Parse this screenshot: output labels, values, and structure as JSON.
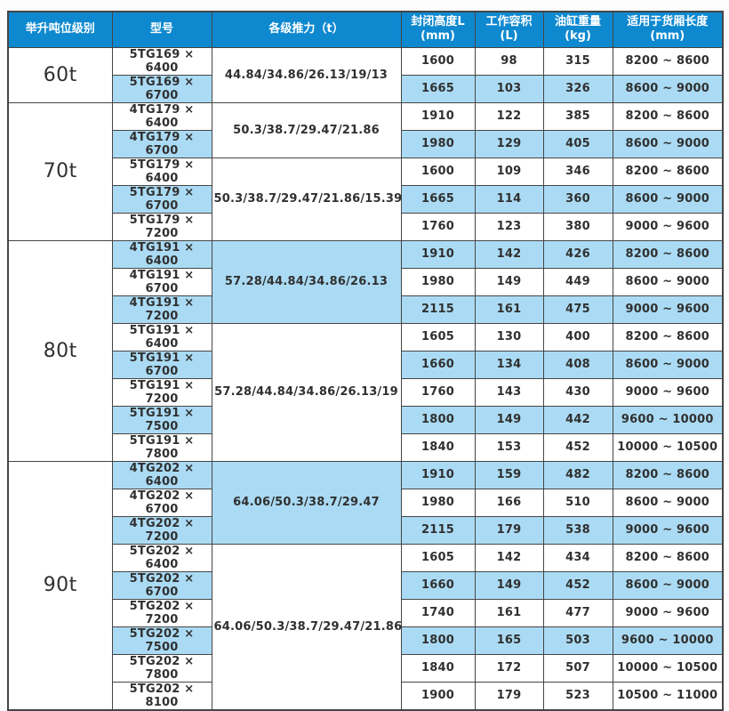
{
  "colors": {
    "page_bg": "#fcfcfc",
    "header_bg": "#0e89d0",
    "header_text": "#ffffff",
    "row_blue": "#abdbf4",
    "row_white": "#ffffff",
    "border": "#454545",
    "text": "#303030"
  },
  "table": {
    "columns": [
      {
        "id": "tonnage",
        "label": "举升吨位级别",
        "sub": ""
      },
      {
        "id": "model",
        "label": "型号",
        "sub": ""
      },
      {
        "id": "thrust",
        "label": "各级推力（t）",
        "sub": ""
      },
      {
        "id": "closed-height",
        "label": "封闭高度L",
        "sub": "(mm)"
      },
      {
        "id": "working-volume",
        "label": "工作容积(L)",
        "sub": ""
      },
      {
        "id": "cylinder-weight",
        "label": "油缸重量(kg)",
        "sub": ""
      },
      {
        "id": "cargo-length",
        "label": "适用于货厢长度",
        "sub": "(mm)"
      }
    ],
    "groups": [
      {
        "tonnage": "60t",
        "subgroups": [
          {
            "thrust": "44.84/34.86/26.13/19/13",
            "thrust_shade": "white",
            "rows": [
              {
                "model": "5TG169 × 6400",
                "closed_height": "1600",
                "working_volume": "98",
                "cylinder_weight": "315",
                "cargo_length": "8200 ~ 8600",
                "shade": "white"
              },
              {
                "model": "5TG169 × 6700",
                "closed_height": "1665",
                "working_volume": "103",
                "cylinder_weight": "326",
                "cargo_length": "8600 ~ 9000",
                "shade": "blue"
              }
            ]
          }
        ]
      },
      {
        "tonnage": "70t",
        "subgroups": [
          {
            "thrust": "50.3/38.7/29.47/21.86",
            "thrust_shade": "white",
            "rows": [
              {
                "model": "4TG179 × 6400",
                "closed_height": "1910",
                "working_volume": "122",
                "cylinder_weight": "385",
                "cargo_length": "8200 ~ 8600",
                "shade": "white"
              },
              {
                "model": "4TG179 × 6700",
                "closed_height": "1980",
                "working_volume": "129",
                "cylinder_weight": "405",
                "cargo_length": "8600 ~ 9000",
                "shade": "blue"
              }
            ]
          },
          {
            "thrust": "50.3/38.7/29.47/21.86/15.39",
            "thrust_shade": "white",
            "rows": [
              {
                "model": "5TG179 × 6400",
                "closed_height": "1600",
                "working_volume": "109",
                "cylinder_weight": "346",
                "cargo_length": "8200 ~ 8600",
                "shade": "white"
              },
              {
                "model": "5TG179 × 6700",
                "closed_height": "1665",
                "working_volume": "114",
                "cylinder_weight": "360",
                "cargo_length": "8600 ~ 9000",
                "shade": "blue"
              },
              {
                "model": "5TG179 × 7200",
                "closed_height": "1760",
                "working_volume": "123",
                "cylinder_weight": "380",
                "cargo_length": "9000 ~ 9600",
                "shade": "white"
              }
            ]
          }
        ]
      },
      {
        "tonnage": "80t",
        "subgroups": [
          {
            "thrust": "57.28/44.84/34.86/26.13",
            "thrust_shade": "blue",
            "rows": [
              {
                "model": "4TG191 × 6400",
                "closed_height": "1910",
                "working_volume": "142",
                "cylinder_weight": "426",
                "cargo_length": "8200 ~ 8600",
                "shade": "blue"
              },
              {
                "model": "4TG191 × 6700",
                "closed_height": "1980",
                "working_volume": "149",
                "cylinder_weight": "449",
                "cargo_length": "8600 ~ 9000",
                "shade": "white"
              },
              {
                "model": "4TG191 × 7200",
                "closed_height": "2115",
                "working_volume": "161",
                "cylinder_weight": "475",
                "cargo_length": "9000 ~ 9600",
                "shade": "blue"
              }
            ]
          },
          {
            "thrust": "57.28/44.84/34.86/26.13/19",
            "thrust_shade": "white",
            "rows": [
              {
                "model": "5TG191 × 6400",
                "closed_height": "1605",
                "working_volume": "130",
                "cylinder_weight": "400",
                "cargo_length": "8200 ~ 8600",
                "shade": "white"
              },
              {
                "model": "5TG191 × 6700",
                "closed_height": "1660",
                "working_volume": "134",
                "cylinder_weight": "408",
                "cargo_length": "8600 ~ 9000",
                "shade": "blue"
              },
              {
                "model": "5TG191 × 7200",
                "closed_height": "1760",
                "working_volume": "143",
                "cylinder_weight": "430",
                "cargo_length": "9000 ~ 9600",
                "shade": "white"
              },
              {
                "model": "5TG191 × 7500",
                "closed_height": "1800",
                "working_volume": "149",
                "cylinder_weight": "442",
                "cargo_length": "9600 ~ 10000",
                "shade": "blue"
              },
              {
                "model": "5TG191 × 7800",
                "closed_height": "1840",
                "working_volume": "153",
                "cylinder_weight": "452",
                "cargo_length": "10000 ~ 10500",
                "shade": "white"
              }
            ]
          }
        ]
      },
      {
        "tonnage": "90t",
        "subgroups": [
          {
            "thrust": "64.06/50.3/38.7/29.47",
            "thrust_shade": "blue",
            "rows": [
              {
                "model": "4TG202 × 6400",
                "closed_height": "1910",
                "working_volume": "159",
                "cylinder_weight": "482",
                "cargo_length": "8200 ~ 8600",
                "shade": "blue"
              },
              {
                "model": "4TG202 × 6700",
                "closed_height": "1980",
                "working_volume": "166",
                "cylinder_weight": "510",
                "cargo_length": "8600 ~ 9000",
                "shade": "white"
              },
              {
                "model": "4TG202 × 7200",
                "closed_height": "2115",
                "working_volume": "179",
                "cylinder_weight": "538",
                "cargo_length": "9000 ~ 9600",
                "shade": "blue"
              }
            ]
          },
          {
            "thrust": "64.06/50.3/38.7/29.47/21.86",
            "thrust_shade": "white",
            "rows": [
              {
                "model": "5TG202 × 6400",
                "closed_height": "1605",
                "working_volume": "142",
                "cylinder_weight": "434",
                "cargo_length": "8200 ~ 8600",
                "shade": "white"
              },
              {
                "model": "5TG202 × 6700",
                "closed_height": "1660",
                "working_volume": "149",
                "cylinder_weight": "452",
                "cargo_length": "8600 ~ 9000",
                "shade": "blue"
              },
              {
                "model": "5TG202 × 7200",
                "closed_height": "1740",
                "working_volume": "161",
                "cylinder_weight": "477",
                "cargo_length": "9000 ~ 9600",
                "shade": "white"
              },
              {
                "model": "5TG202 × 7500",
                "closed_height": "1800",
                "working_volume": "165",
                "cylinder_weight": "503",
                "cargo_length": "9600 ~ 10000",
                "shade": "blue"
              },
              {
                "model": "5TG202 × 7800",
                "closed_height": "1840",
                "working_volume": "172",
                "cylinder_weight": "507",
                "cargo_length": "10000 ~ 10500",
                "shade": "white"
              },
              {
                "model": "5TG202 × 8100",
                "closed_height": "1900",
                "working_volume": "179",
                "cylinder_weight": "523",
                "cargo_length": "10500 ~ 11000",
                "shade": "white"
              }
            ]
          }
        ]
      }
    ]
  }
}
